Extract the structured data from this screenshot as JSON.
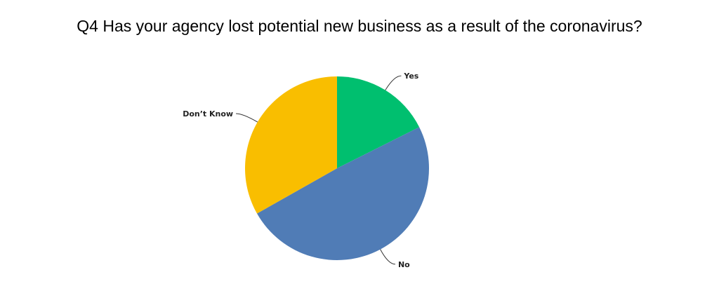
{
  "chart_data": {
    "type": "pie",
    "title": "Q4 Has your agency lost potential new business as a result of the coronavirus?",
    "slices": [
      {
        "label": "Yes",
        "value": 17.6,
        "color": "#00bf6f"
      },
      {
        "label": "No",
        "value": 49.2,
        "color": "#507cb6"
      },
      {
        "label": "Don’t Know",
        "value": 33.2,
        "color": "#f9be00"
      }
    ],
    "start_angle": "12 o'clock",
    "direction": "clockwise",
    "legend": "none (outside labels with leader lines)"
  }
}
